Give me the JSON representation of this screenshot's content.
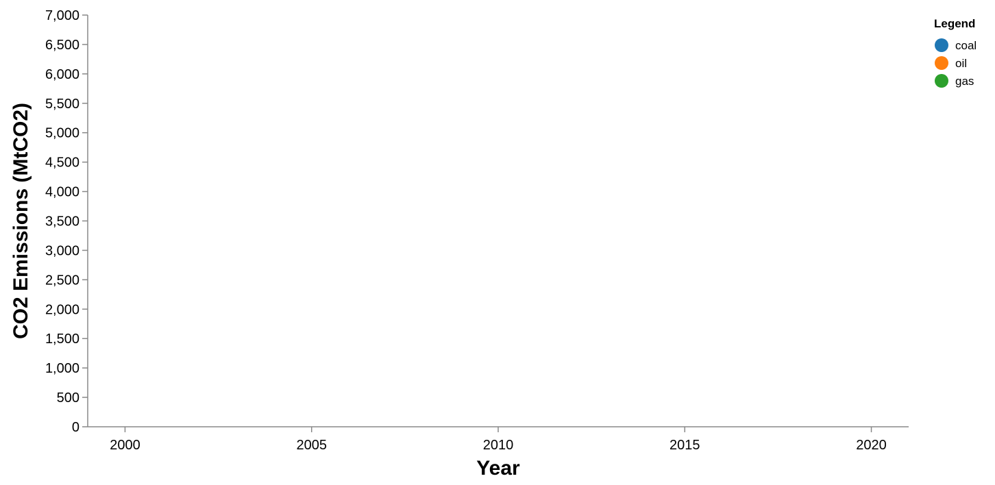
{
  "chart_data": {
    "type": "line",
    "title": "",
    "xlabel": "Year",
    "ylabel": "CO2 Emissions (MtCO2)",
    "xlim": [
      1999,
      2021
    ],
    "ylim": [
      0,
      7000
    ],
    "x_ticks": [
      2000,
      2005,
      2010,
      2015,
      2020
    ],
    "x_tick_labels": [
      "2000",
      "2005",
      "2010",
      "2015",
      "2020"
    ],
    "y_ticks": [
      0,
      500,
      1000,
      1500,
      2000,
      2500,
      3000,
      3500,
      4000,
      4500,
      5000,
      5500,
      6000,
      6500,
      7000
    ],
    "y_tick_labels": [
      "0",
      "500",
      "1,000",
      "1,500",
      "2,000",
      "2,500",
      "3,000",
      "3,500",
      "4,000",
      "4,500",
      "5,000",
      "5,500",
      "6,000",
      "6,500",
      "7,000"
    ],
    "grid": false,
    "legend": {
      "title": "Legend",
      "placement": "top-right",
      "entries": [
        {
          "label": "coal",
          "color": "#1f77b4"
        },
        {
          "label": "oil",
          "color": "#ff7f0e"
        },
        {
          "label": "gas",
          "color": "#2ca02c"
        }
      ]
    },
    "series": []
  }
}
